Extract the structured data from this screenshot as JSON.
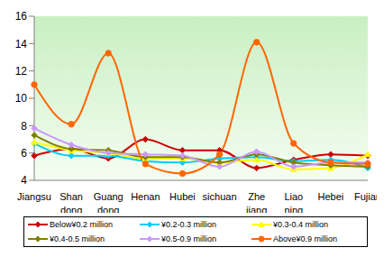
{
  "chart_data": {
    "type": "line",
    "categories": [
      "Jiangsu",
      "Shan dong",
      "Guang dong",
      "Henan",
      "Hubei",
      "sichuan",
      "Zhe jiang",
      "Liao ning",
      "Hebei",
      "Fujian"
    ],
    "ylim": [
      4,
      16
    ],
    "yticks": [
      4,
      6,
      8,
      10,
      12,
      14,
      16
    ],
    "grid": false,
    "legend": "bottom",
    "series": [
      {
        "name": "Below¥0.2 million",
        "color": "#cc0000",
        "marker": "diamond",
        "values": [
          5.8,
          6.3,
          5.6,
          7.0,
          6.2,
          6.2,
          4.9,
          5.5,
          5.9,
          5.8
        ]
      },
      {
        "name": "¥0.2-0.3 million",
        "color": "#00ccff",
        "marker": "diamond",
        "values": [
          6.7,
          5.8,
          5.8,
          5.4,
          5.3,
          5.6,
          5.7,
          5.4,
          5.5,
          4.9
        ]
      },
      {
        "name": "¥0.3-0.4 million",
        "color": "#ffff00",
        "marker": "triangle",
        "values": [
          6.8,
          6.2,
          6.0,
          5.6,
          5.6,
          5.3,
          5.5,
          4.8,
          4.9,
          5.9
        ]
      },
      {
        "name": "¥0.4-0.5 million",
        "color": "#808000",
        "marker": "diamond",
        "values": [
          7.3,
          6.3,
          6.2,
          5.7,
          5.7,
          5.3,
          5.9,
          5.3,
          5.1,
          5.0
        ]
      },
      {
        "name": "¥0.5-0.9 million",
        "color": "#cc99ff",
        "marker": "diamond",
        "values": [
          7.8,
          6.6,
          6.0,
          5.9,
          5.8,
          5.0,
          6.1,
          5.0,
          5.3,
          5.3
        ]
      },
      {
        "name": "Above¥0.9 million",
        "color": "#ff6600",
        "marker": "circle",
        "values": [
          11.0,
          8.1,
          13.3,
          5.2,
          4.5,
          5.9,
          14.1,
          6.7,
          5.3,
          5.2
        ]
      }
    ]
  }
}
